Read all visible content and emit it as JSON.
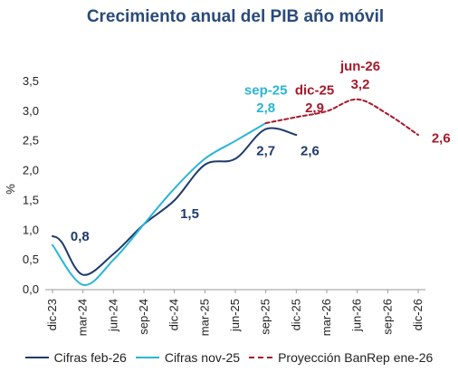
{
  "chart_data": {
    "type": "line",
    "title": "Crecimiento anual del PIB año móvil",
    "ylabel": "%",
    "xlabel": "",
    "ylim": [
      0,
      3.5
    ],
    "yticks": [
      "0,0",
      "0,5",
      "1,0",
      "1,5",
      "2,0",
      "2,5",
      "3,0",
      "3,5"
    ],
    "categories": [
      "dic-23",
      "mar-24",
      "jun-24",
      "sep-24",
      "dic-24",
      "mar-25",
      "jun-25",
      "sep-25",
      "dic-25",
      "mar-26",
      "jun-26",
      "sep-26",
      "dic-26"
    ],
    "grid": false,
    "legend_position": "bottom",
    "series": [
      {
        "name": "Cifras feb-26",
        "color": "#1f3b6b",
        "dashed": false,
        "points": [
          [
            0,
            0.9
          ],
          [
            0.3,
            0.8
          ],
          [
            1.0,
            0.25
          ],
          [
            2.0,
            0.6
          ],
          [
            3.0,
            1.1
          ],
          [
            4.0,
            1.5
          ],
          [
            5.0,
            2.1
          ],
          [
            6.0,
            2.2
          ],
          [
            7.0,
            2.7
          ],
          [
            8.0,
            2.6
          ]
        ]
      },
      {
        "name": "Cifras nov-25",
        "color": "#2ab5d6",
        "dashed": false,
        "points": [
          [
            0,
            0.75
          ],
          [
            1.0,
            0.08
          ],
          [
            2.0,
            0.5
          ],
          [
            3.0,
            1.1
          ],
          [
            4.0,
            1.7
          ],
          [
            5.0,
            2.2
          ],
          [
            6.0,
            2.5
          ],
          [
            7.0,
            2.8
          ]
        ]
      },
      {
        "name": "Proyección BanRep ene-26",
        "color": "#a8192a",
        "dashed": true,
        "points": [
          [
            7.0,
            2.8
          ],
          [
            8.0,
            2.9
          ],
          [
            9.0,
            3.0
          ],
          [
            10.0,
            3.2
          ],
          [
            11.0,
            2.95
          ],
          [
            12.0,
            2.6
          ]
        ]
      }
    ],
    "annotations": [
      {
        "text": "0,8",
        "x": 0.9,
        "y": 0.82,
        "color": "#1f3b6b"
      },
      {
        "text": "1,5",
        "x": 4.5,
        "y": 1.2,
        "color": "#1f3b6b"
      },
      {
        "text": "2,7",
        "x": 7.0,
        "y": 2.26,
        "color": "#1f3b6b"
      },
      {
        "text": "2,6",
        "x": 8.45,
        "y": 2.26,
        "color": "#1f3b6b"
      },
      {
        "text": "sep-25",
        "x": 7.0,
        "y": 3.28,
        "color": "#2ab5d6"
      },
      {
        "text": "2,8",
        "x": 7.0,
        "y": 2.98,
        "color": "#2ab5d6"
      },
      {
        "text": "dic-25",
        "x": 8.6,
        "y": 3.28,
        "color": "#a8192a"
      },
      {
        "text": "2,9",
        "x": 8.6,
        "y": 2.98,
        "color": "#a8192a"
      },
      {
        "text": "jun-26",
        "x": 10.1,
        "y": 3.68,
        "color": "#a8192a"
      },
      {
        "text": "3,2",
        "x": 10.1,
        "y": 3.38,
        "color": "#a8192a"
      },
      {
        "text": "2,6",
        "x": 12.75,
        "y": 2.47,
        "color": "#a8192a"
      }
    ]
  }
}
